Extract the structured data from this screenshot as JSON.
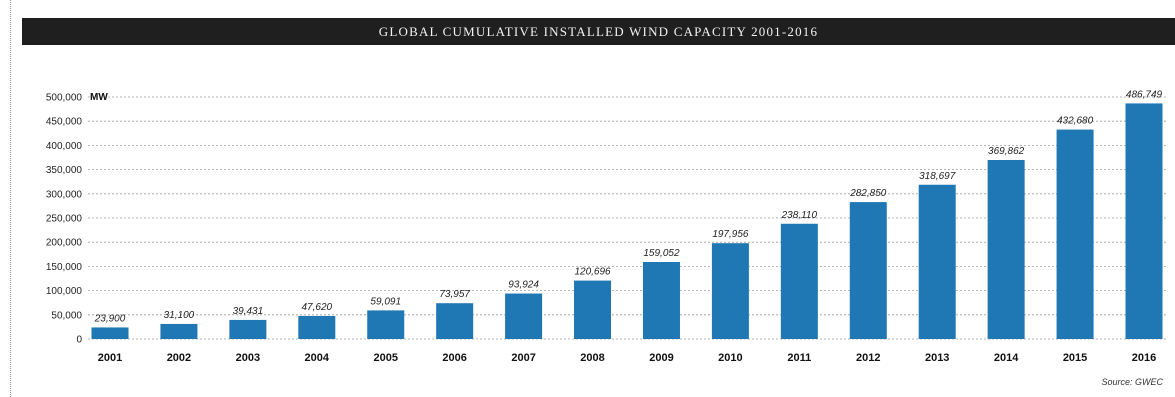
{
  "chart_data": {
    "type": "bar",
    "title": "GLOBAL CUMULATIVE INSTALLED WIND CAPACITY 2001-2016",
    "unit": "MW",
    "source": "Source: GWEC",
    "categories": [
      "2001",
      "2002",
      "2003",
      "2004",
      "2005",
      "2006",
      "2007",
      "2008",
      "2009",
      "2010",
      "2011",
      "2012",
      "2013",
      "2014",
      "2015",
      "2016"
    ],
    "values": [
      23900,
      31100,
      39431,
      47620,
      59091,
      73957,
      93924,
      120696,
      159052,
      197956,
      238110,
      282850,
      318697,
      369862,
      432680,
      486749
    ],
    "value_labels": [
      "23,900",
      "31,100",
      "39,431",
      "47,620",
      "59,091",
      "73,957",
      "93,924",
      "120,696",
      "159,052",
      "197,956",
      "238,110",
      "282,850",
      "318,697",
      "369,862",
      "432,680",
      "486,749"
    ],
    "yticks": [
      0,
      50000,
      100000,
      150000,
      200000,
      250000,
      300000,
      350000,
      400000,
      450000,
      500000
    ],
    "ytick_labels": [
      "0",
      "50,000",
      "100,000",
      "150,000",
      "200,000",
      "250,000",
      "300,000",
      "350,000",
      "400,000",
      "450,000",
      "500,000"
    ],
    "ylim": [
      0,
      500000
    ],
    "grid": true,
    "bar_color": "#1f77b4"
  }
}
